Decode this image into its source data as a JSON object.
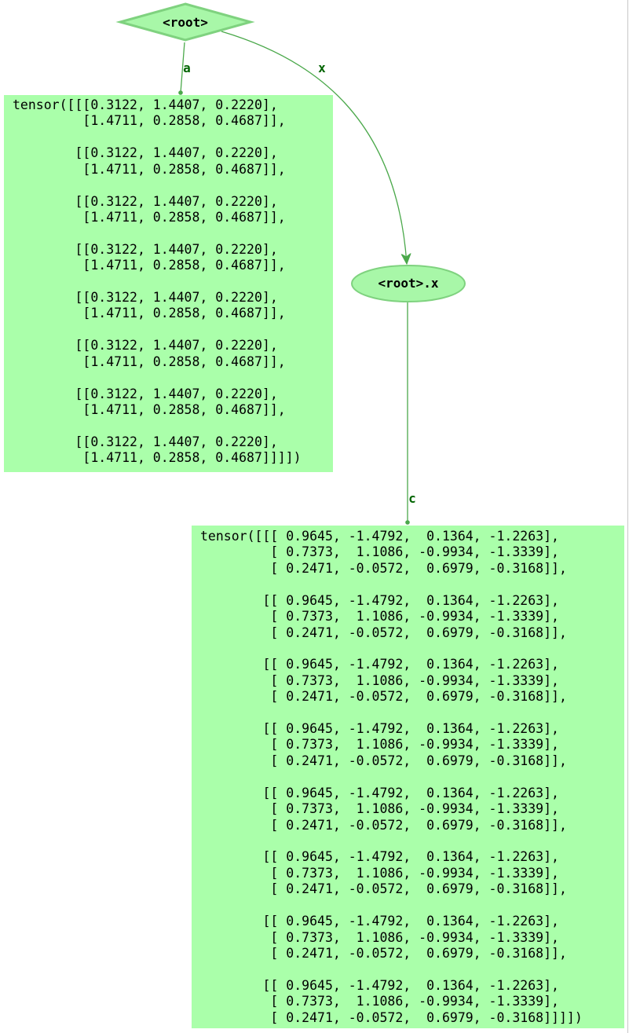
{
  "nodes": {
    "root": {
      "label": "<root>"
    },
    "root_x": {
      "label": "<root>.x"
    }
  },
  "edges": {
    "a": {
      "label": "a"
    },
    "x": {
      "label": "x"
    },
    "c": {
      "label": "c"
    }
  },
  "tensors": {
    "a": "tensor([[[0.3122, 1.4407, 0.2220],\n         [1.4711, 0.2858, 0.4687]],\n\n        [[0.3122, 1.4407, 0.2220],\n         [1.4711, 0.2858, 0.4687]],\n\n        [[0.3122, 1.4407, 0.2220],\n         [1.4711, 0.2858, 0.4687]],\n\n        [[0.3122, 1.4407, 0.2220],\n         [1.4711, 0.2858, 0.4687]],\n\n        [[0.3122, 1.4407, 0.2220],\n         [1.4711, 0.2858, 0.4687]],\n\n        [[0.3122, 1.4407, 0.2220],\n         [1.4711, 0.2858, 0.4687]],\n\n        [[0.3122, 1.4407, 0.2220],\n         [1.4711, 0.2858, 0.4687]],\n\n        [[0.3122, 1.4407, 0.2220],\n         [1.4711, 0.2858, 0.4687]]]])",
    "c": "tensor([[[ 0.9645, -1.4792,  0.1364, -1.2263],\n         [ 0.7373,  1.1086, -0.9934, -1.3339],\n         [ 0.2471, -0.0572,  0.6979, -0.3168]],\n\n        [[ 0.9645, -1.4792,  0.1364, -1.2263],\n         [ 0.7373,  1.1086, -0.9934, -1.3339],\n         [ 0.2471, -0.0572,  0.6979, -0.3168]],\n\n        [[ 0.9645, -1.4792,  0.1364, -1.2263],\n         [ 0.7373,  1.1086, -0.9934, -1.3339],\n         [ 0.2471, -0.0572,  0.6979, -0.3168]],\n\n        [[ 0.9645, -1.4792,  0.1364, -1.2263],\n         [ 0.7373,  1.1086, -0.9934, -1.3339],\n         [ 0.2471, -0.0572,  0.6979, -0.3168]],\n\n        [[ 0.9645, -1.4792,  0.1364, -1.2263],\n         [ 0.7373,  1.1086, -0.9934, -1.3339],\n         [ 0.2471, -0.0572,  0.6979, -0.3168]],\n\n        [[ 0.9645, -1.4792,  0.1364, -1.2263],\n         [ 0.7373,  1.1086, -0.9934, -1.3339],\n         [ 0.2471, -0.0572,  0.6979, -0.3168]],\n\n        [[ 0.9645, -1.4792,  0.1364, -1.2263],\n         [ 0.7373,  1.1086, -0.9934, -1.3339],\n         [ 0.2471, -0.0572,  0.6979, -0.3168]],\n\n        [[ 0.9645, -1.4792,  0.1364, -1.2263],\n         [ 0.7373,  1.1086, -0.9934, -1.3339],\n         [ 0.2471, -0.0572,  0.6979, -0.3168]]]])"
  },
  "colors": {
    "node_fill": "#a8f7a8",
    "node_stroke": "#7fd27f",
    "leaf_fill": "#aaffaa",
    "edge": "#4aa84a",
    "edge_label": "#006400"
  }
}
